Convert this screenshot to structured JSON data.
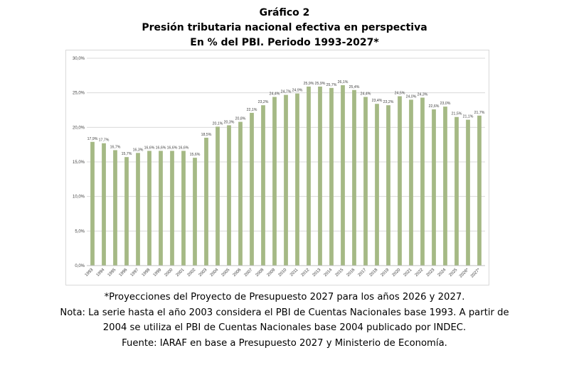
{
  "header": {
    "line1": "Gráfico 2",
    "line2": "Presión tributaria nacional efectiva en perspectiva",
    "line3": "En % del PBI. Periodo 1993-2027*"
  },
  "notes": {
    "line1": "*Proyecciones del Proyecto de Presupuesto 2027 para los años 2026 y 2027.",
    "line2": "Nota: La serie hasta el año 2003 considera el PBI de Cuentas Nacionales base 1993. A partir de",
    "line3": "2004 se utiliza el PBI de Cuentas Nacionales base 2004 publicado por INDEC.",
    "line4": "Fuente: IARAF en base a Presupuesto 2027 y Ministerio de Economía."
  },
  "chart_data": {
    "type": "bar",
    "title": "Presión tributaria nacional efectiva en perspectiva",
    "xlabel": "",
    "ylabel": "",
    "ylim": [
      0,
      30
    ],
    "yticks": [
      "0,0%",
      "5,0%",
      "10,0%",
      "15,0%",
      "20,0%",
      "25,0%",
      "30,0%"
    ],
    "grid": true,
    "legend": "none",
    "bar_color": "#a5b985",
    "categories": [
      "1993",
      "1994",
      "1995",
      "1996",
      "1997",
      "1998",
      "1999",
      "2000",
      "2001",
      "2002",
      "2003",
      "2004",
      "2005",
      "2006",
      "2007",
      "2008",
      "2009",
      "2010",
      "2011",
      "2012",
      "2013",
      "2014",
      "2015",
      "2016",
      "2017",
      "2018",
      "2019",
      "2020",
      "2021",
      "2022",
      "2023",
      "2024",
      "2025",
      "2026*",
      "2027*"
    ],
    "values": [
      17.9,
      17.7,
      16.7,
      15.7,
      16.3,
      16.6,
      16.6,
      16.6,
      16.6,
      15.6,
      18.5,
      20.1,
      20.3,
      20.8,
      22.1,
      23.2,
      24.4,
      24.7,
      24.9,
      25.9,
      25.9,
      25.7,
      26.1,
      25.4,
      24.4,
      23.4,
      23.2,
      24.5,
      24.0,
      24.3,
      22.6,
      23.0,
      21.5,
      21.1,
      21.7
    ],
    "labels": [
      "17,9%",
      "17,7%",
      "16,7%",
      "15,7%",
      "16,3%",
      "16,6%",
      "16,6%",
      "16,6%",
      "16,6%",
      "15,6%",
      "18,5%",
      "20,1%",
      "20,3%",
      "20,8%",
      "22,1%",
      "23,2%",
      "24,4%",
      "24,7%",
      "24,9%",
      "25,9%",
      "25,9%",
      "25,7%",
      "26,1%",
      "25,4%",
      "24,4%",
      "23,4%",
      "23,2%",
      "24,5%",
      "24,0%",
      "24,3%",
      "22,6%",
      "23,0%",
      "21,5%",
      "21,1%",
      "21,7%"
    ]
  }
}
